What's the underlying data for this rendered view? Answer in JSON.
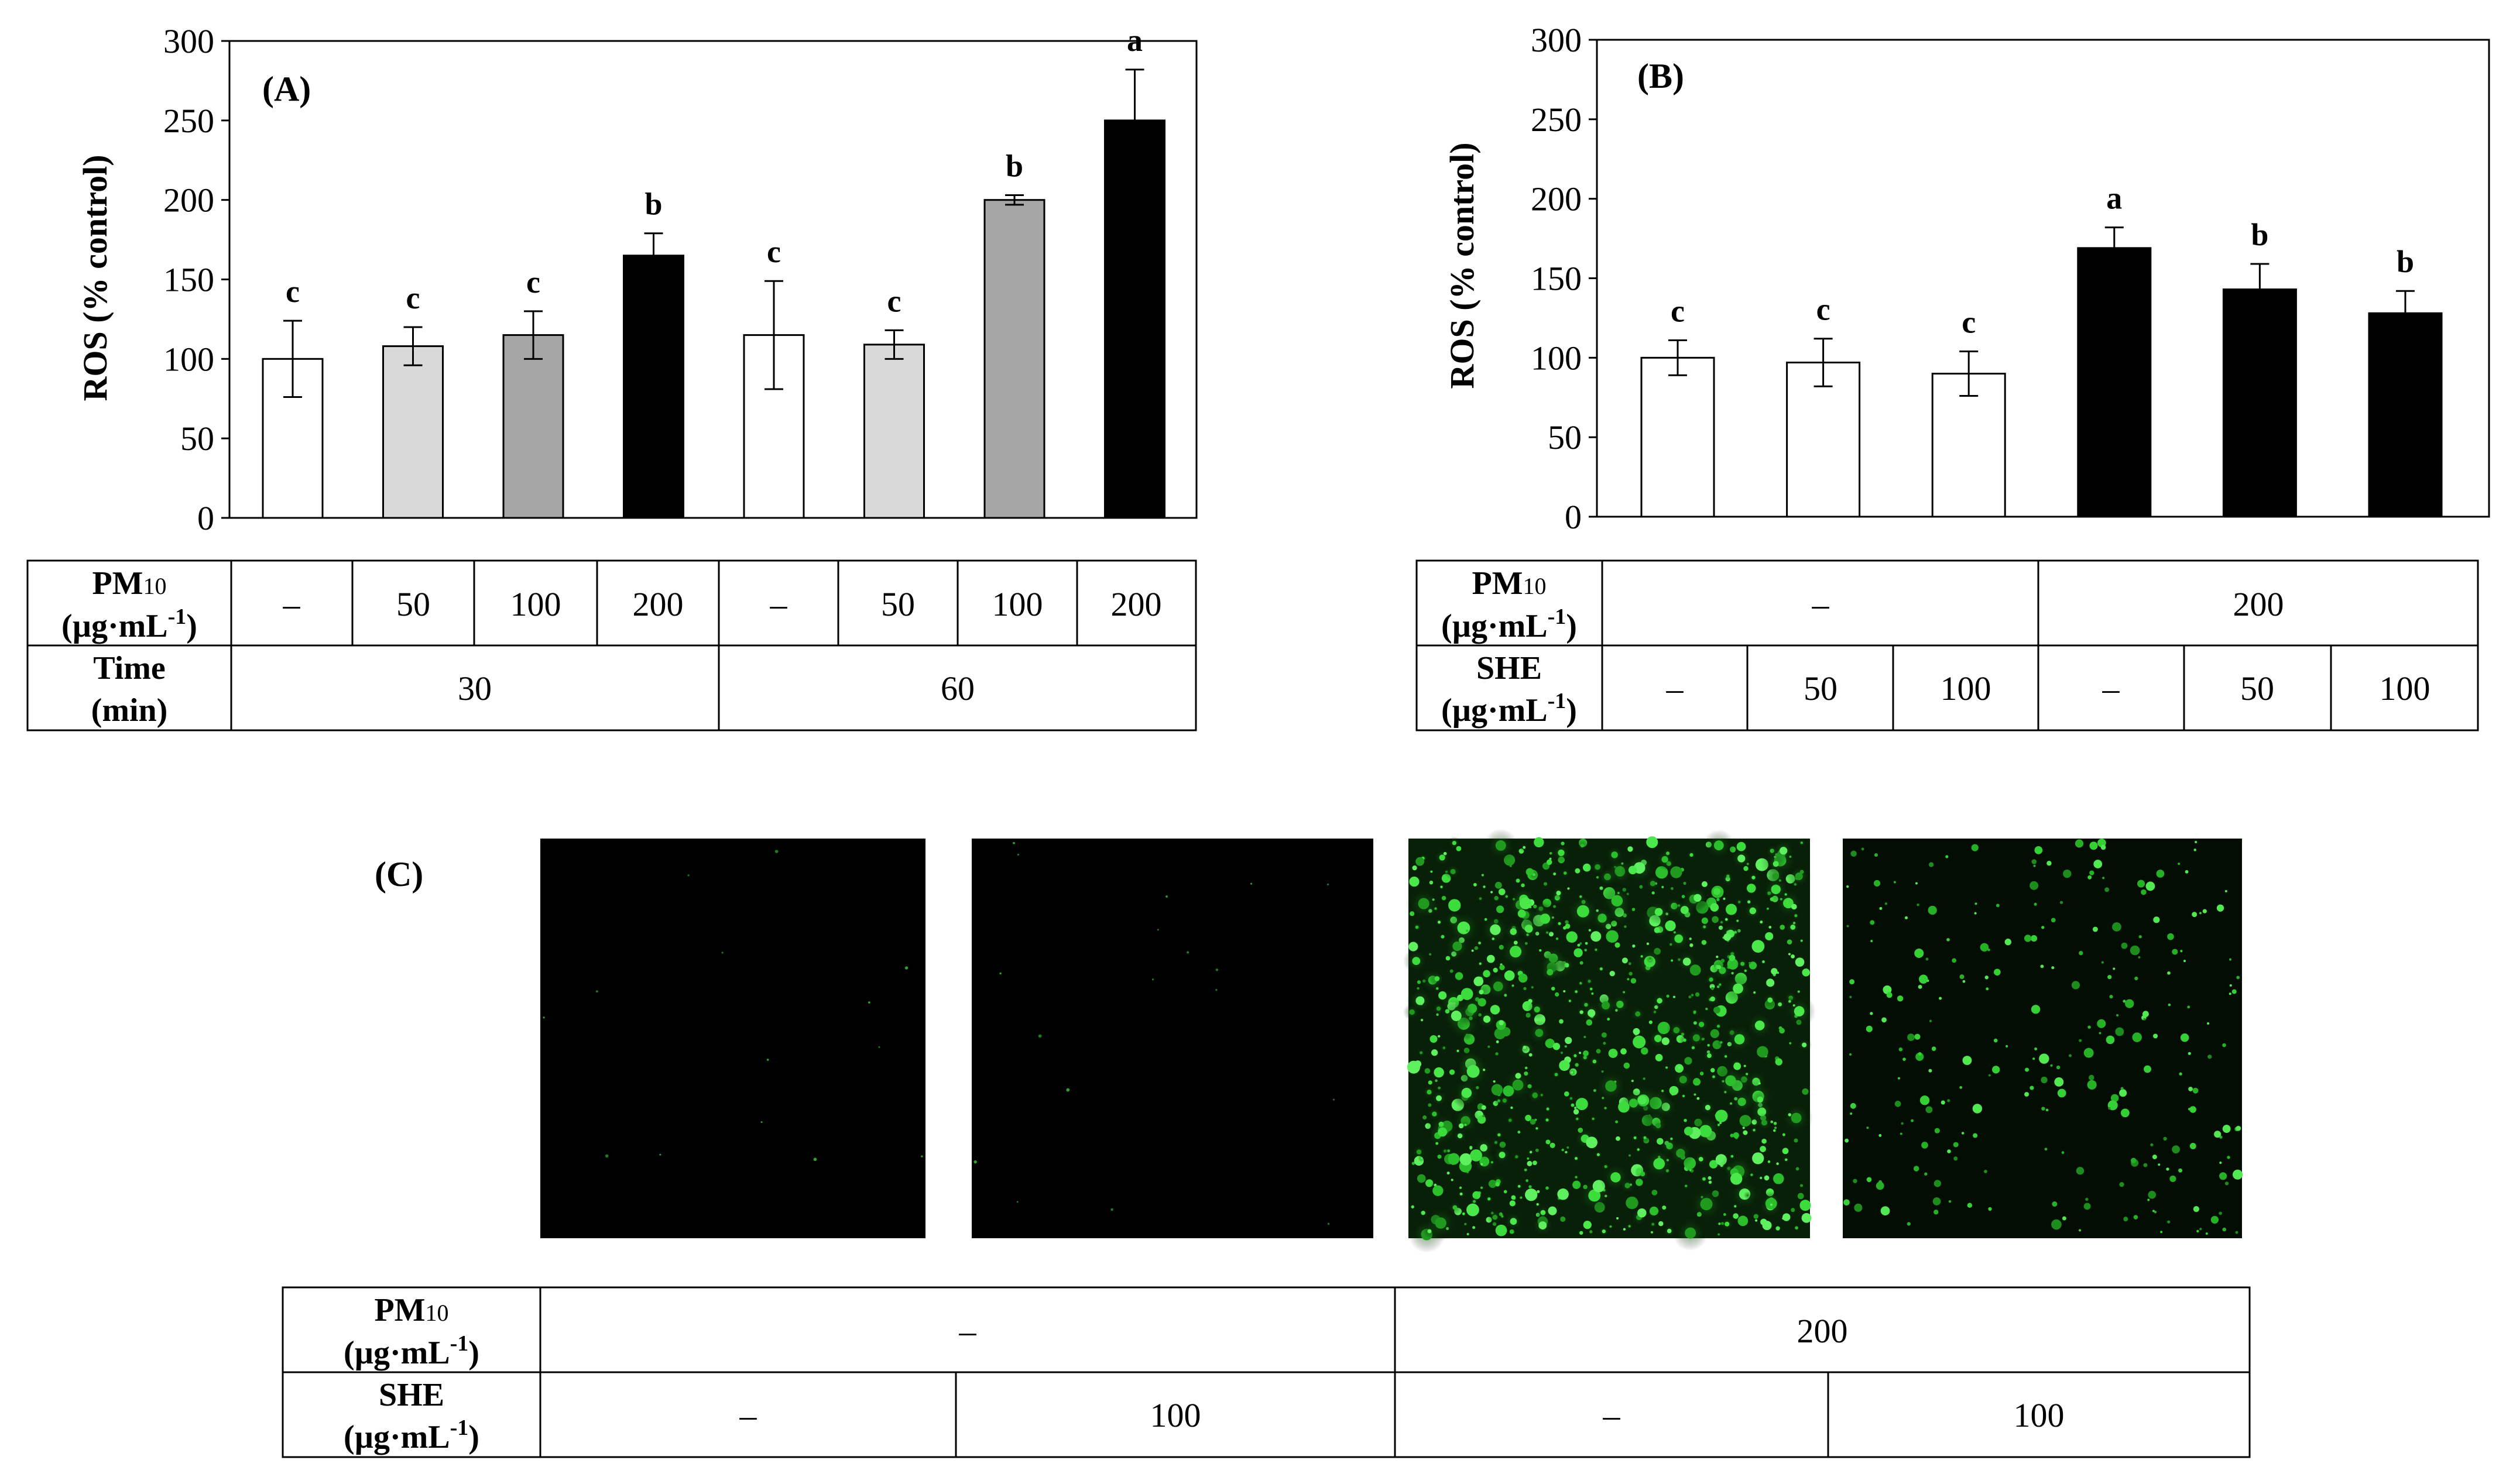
{
  "chart_data": [
    {
      "type": "bar",
      "panel": "(A)",
      "ylabel": "ROS (% control)",
      "ylim": [
        0,
        300
      ],
      "yticks": [
        "0",
        "50",
        "100",
        "150",
        "200",
        "250",
        "300"
      ],
      "values": [
        100,
        108,
        115,
        165,
        115,
        109,
        200,
        250
      ],
      "errors": [
        24,
        12,
        15,
        14,
        34,
        9,
        3,
        32
      ],
      "letters": [
        "c",
        "c",
        "c",
        "b",
        "c",
        "c",
        "b",
        "a"
      ],
      "bar_colors": [
        "#ffffff",
        "#d9d9d9",
        "#a6a6a6",
        "#000000",
        "#ffffff",
        "#d9d9d9",
        "#a6a6a6",
        "#000000"
      ],
      "table": {
        "row1_label": "PM",
        "row1_sub": "10",
        "row1_label2": "(µg·mL",
        "row1_sup": "-1",
        "row1_tail": ")",
        "row1_values": [
          "–",
          "50",
          "100",
          "200",
          "–",
          "50",
          "100",
          "200"
        ],
        "row2_label": "Time",
        "row2_label2": "(min)",
        "row2_values": [
          "30",
          "60"
        ]
      }
    },
    {
      "type": "bar",
      "panel": "(B)",
      "ylabel": "ROS (% control)",
      "ylim": [
        0,
        300
      ],
      "yticks": [
        "0",
        "50",
        "100",
        "150",
        "200",
        "250",
        "300"
      ],
      "values": [
        100,
        97,
        90,
        169,
        143,
        128
      ],
      "errors": [
        11,
        15,
        14,
        13,
        16,
        14
      ],
      "letters": [
        "c",
        "c",
        "c",
        "a",
        "b",
        "b"
      ],
      "letter_colors": [
        "#000000",
        "#000000",
        "#000000",
        "#000000",
        "#000000",
        "#7f7f7f"
      ],
      "bar_colors": [
        "#ffffff",
        "#ffffff",
        "#ffffff",
        "#000000",
        "#000000",
        "#000000"
      ],
      "table": {
        "row1_label": "PM",
        "row1_sub": "10",
        "row1_label2": "(µg·mL",
        "row1_sup": "-1",
        "row1_tail": ")",
        "row1_values": [
          "–",
          "200"
        ],
        "row2_label": "SHE",
        "row2_label2": "(µg·mL",
        "row2_sup": "-1",
        "row2_tail": ")",
        "row2_values": [
          "–",
          "50",
          "100",
          "–",
          "50",
          "100"
        ]
      }
    }
  ],
  "panel_c": {
    "label": "(C)",
    "images": [
      "control",
      "SHE 100",
      "PM10 200",
      "PM10 200 + SHE 100"
    ],
    "table": {
      "row1_label": "PM",
      "row1_sub": "10",
      "row1_label2": "(µg·mL",
      "row1_sup": "-1",
      "row1_tail": ")",
      "row1_values": [
        "–",
        "200"
      ],
      "row2_label": "SHE",
      "row2_label2": "(µg·mL",
      "row2_sup": "-1",
      "row2_tail": ")",
      "row2_values": [
        "–",
        "100",
        "–",
        "100"
      ]
    }
  }
}
